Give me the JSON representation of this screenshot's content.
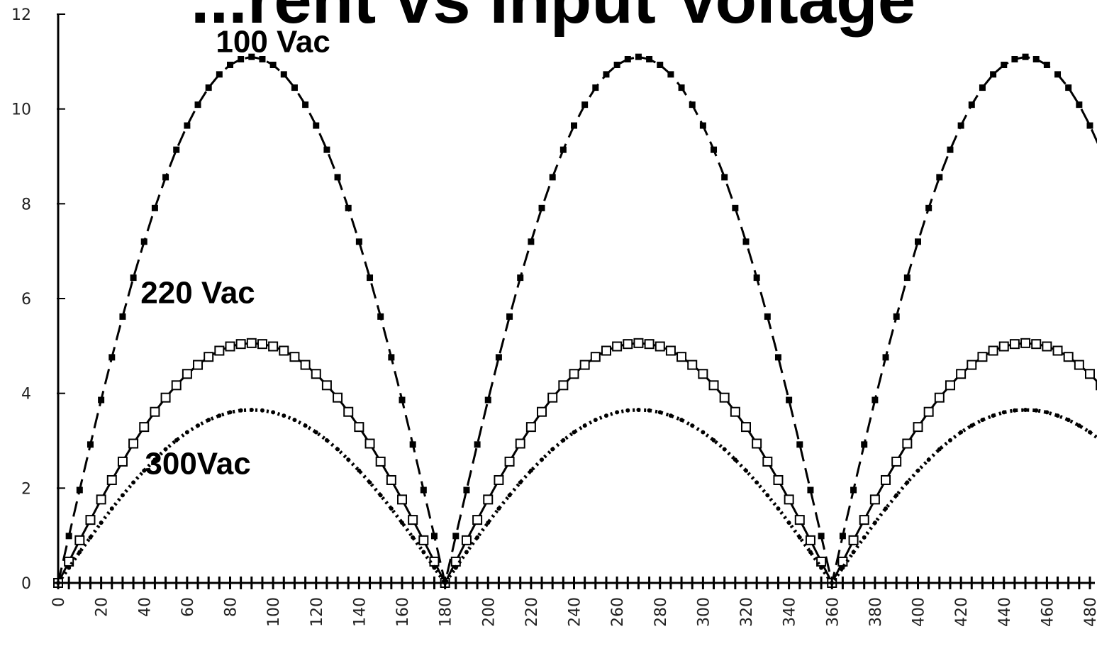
{
  "chart_data": {
    "type": "line",
    "title": "...rent vs Input Voltage",
    "xlabel": "",
    "ylabel": "",
    "xlim": [
      0,
      480
    ],
    "ylim": [
      0,
      12
    ],
    "x_ticks": [
      0,
      20,
      40,
      60,
      80,
      100,
      120,
      140,
      160,
      180,
      200,
      220,
      240,
      260,
      280,
      300,
      320,
      340,
      360,
      380,
      400,
      420,
      440,
      460,
      480
    ],
    "y_ticks": [
      0,
      2,
      4,
      6,
      8,
      10,
      12
    ],
    "x_step": 5,
    "series": [
      {
        "name": "100 Vac",
        "marker": "filled-square",
        "line": "long-dash",
        "values": [
          0.0,
          0.99,
          1.96,
          2.92,
          3.86,
          4.76,
          5.62,
          6.44,
          7.2,
          7.91,
          8.56,
          9.14,
          9.65,
          10.09,
          10.45,
          10.73,
          10.93,
          11.05,
          11.1,
          11.05,
          10.93,
          10.73,
          10.45,
          10.09,
          9.65,
          9.14,
          8.56,
          7.91,
          7.2,
          6.44,
          5.62,
          4.76,
          3.86,
          2.92,
          1.96,
          0.99,
          0.0,
          0.99,
          1.96,
          2.92,
          3.86,
          4.76,
          5.62,
          6.44,
          7.2,
          7.91,
          8.56,
          9.14,
          9.65,
          10.09,
          10.45,
          10.73,
          10.93,
          11.05,
          11.1,
          11.05,
          10.93,
          10.73,
          10.45,
          10.09,
          9.65,
          9.14,
          8.56,
          7.91,
          7.2,
          6.44,
          5.62,
          4.76,
          3.86,
          2.92,
          1.96,
          0.99,
          0.0,
          0.99,
          1.96,
          2.92,
          3.86,
          4.76,
          5.62,
          6.44,
          7.2,
          7.91,
          8.56,
          9.14,
          9.65,
          10.09,
          10.45,
          10.73,
          10.93,
          11.05,
          11.1,
          11.05,
          10.93,
          10.73,
          10.45,
          10.09,
          9.65,
          9.14,
          8.56
        ],
        "label_position": {
          "x": 100,
          "y": 11.2
        }
      },
      {
        "name": "220 Vac",
        "marker": "open-square",
        "line": "solid",
        "values": [
          0.0,
          0.45,
          0.9,
          1.33,
          1.76,
          2.17,
          2.56,
          2.94,
          3.29,
          3.61,
          3.91,
          4.17,
          4.41,
          4.6,
          4.77,
          4.9,
          4.99,
          5.04,
          5.06,
          5.04,
          4.99,
          4.9,
          4.77,
          4.6,
          4.41,
          4.17,
          3.91,
          3.61,
          3.29,
          2.94,
          2.56,
          2.17,
          1.76,
          1.33,
          0.9,
          0.45,
          0.0,
          0.45,
          0.9,
          1.33,
          1.76,
          2.17,
          2.56,
          2.94,
          3.29,
          3.61,
          3.91,
          4.17,
          4.41,
          4.6,
          4.77,
          4.9,
          4.99,
          5.04,
          5.06,
          5.04,
          4.99,
          4.9,
          4.77,
          4.6,
          4.41,
          4.17,
          3.91,
          3.61,
          3.29,
          2.94,
          2.56,
          2.17,
          1.76,
          1.33,
          0.9,
          0.45,
          0.0,
          0.45,
          0.9,
          1.33,
          1.76,
          2.17,
          2.56,
          2.94,
          3.29,
          3.61,
          3.91,
          4.17,
          4.41,
          4.6,
          4.77,
          4.9,
          4.99,
          5.04,
          5.06,
          5.04,
          4.99,
          4.9,
          4.77,
          4.6,
          4.41,
          4.17,
          3.91
        ],
        "label_position": {
          "x": 65,
          "y": 5.9
        }
      },
      {
        "name": "300Vac",
        "marker": "small-dot",
        "line": "dotted",
        "values": [
          0.0,
          0.32,
          0.65,
          0.96,
          1.27,
          1.57,
          1.85,
          2.12,
          2.37,
          2.6,
          2.82,
          3.01,
          3.18,
          3.32,
          3.44,
          3.53,
          3.6,
          3.64,
          3.65,
          3.64,
          3.6,
          3.53,
          3.44,
          3.32,
          3.18,
          3.01,
          2.82,
          2.6,
          2.37,
          2.12,
          1.85,
          1.57,
          1.27,
          0.96,
          0.65,
          0.32,
          0.0,
          0.32,
          0.65,
          0.96,
          1.27,
          1.57,
          1.85,
          2.12,
          2.37,
          2.6,
          2.82,
          3.01,
          3.18,
          3.32,
          3.44,
          3.53,
          3.6,
          3.64,
          3.65,
          3.64,
          3.6,
          3.53,
          3.44,
          3.32,
          3.18,
          3.01,
          2.82,
          2.6,
          2.37,
          2.12,
          1.85,
          1.57,
          1.27,
          0.96,
          0.65,
          0.32,
          0.0,
          0.32,
          0.65,
          0.96,
          1.27,
          1.57,
          1.85,
          2.12,
          2.37,
          2.6,
          2.82,
          3.01,
          3.18,
          3.32,
          3.44,
          3.53,
          3.6,
          3.64,
          3.65,
          3.64,
          3.6,
          3.53,
          3.44,
          3.32,
          3.18,
          3.01,
          2.82
        ],
        "label_position": {
          "x": 65,
          "y": 2.3
        }
      },
      {
        "name": "",
        "marker": "plus",
        "line": "solid",
        "values_constant": 0
      }
    ],
    "grid": false,
    "legend": "inline"
  }
}
